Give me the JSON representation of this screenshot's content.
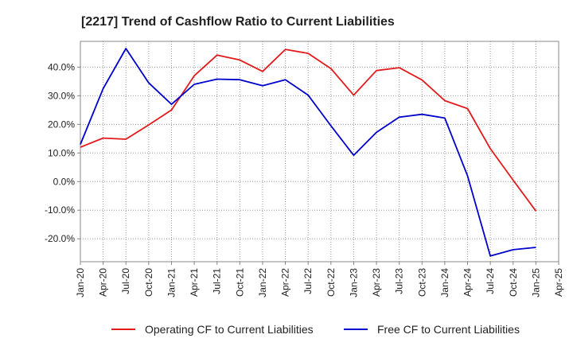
{
  "chart_data": {
    "type": "line",
    "title": "[2217]  Trend of Cashflow Ratio to Current Liabilities",
    "xlabel": "",
    "ylabel": "",
    "x_ticks": [
      "Jan-20",
      "Apr-20",
      "Jul-20",
      "Oct-20",
      "Jan-21",
      "Apr-21",
      "Jul-21",
      "Oct-21",
      "Jan-22",
      "Apr-22",
      "Jul-22",
      "Oct-22",
      "Jan-23",
      "Apr-23",
      "Jul-23",
      "Oct-23",
      "Jan-24",
      "Apr-24",
      "Jul-24",
      "Oct-24",
      "Jan-25",
      "Apr-25"
    ],
    "y_ticks": [
      {
        "value": 40,
        "label": "40.0%"
      },
      {
        "value": 30,
        "label": "30.0%"
      },
      {
        "value": 20,
        "label": "20.0%"
      },
      {
        "value": 10,
        "label": "10.0%"
      },
      {
        "value": 0,
        "label": "0.0%"
      },
      {
        "value": -10,
        "label": "-10.0%"
      },
      {
        "value": -20,
        "label": "-20.0%"
      }
    ],
    "xlim": [
      "Jan-20",
      "Apr-25"
    ],
    "ylim": [
      -28,
      49
    ],
    "grid": true,
    "legend_position": "bottom",
    "series": [
      {
        "name": "Operating CF to Current Liabilities",
        "color": "#e31a1c",
        "points": [
          [
            "Jan-20",
            12.0
          ],
          [
            "Apr-20",
            15.2
          ],
          [
            "Jul-20",
            14.8
          ],
          [
            "Oct-20",
            19.8
          ],
          [
            "Jan-21",
            25.0
          ],
          [
            "Apr-21",
            37.0
          ],
          [
            "Jul-21",
            44.2
          ],
          [
            "Oct-21",
            42.5
          ],
          [
            "Jan-22",
            38.5
          ],
          [
            "Apr-22",
            46.2
          ],
          [
            "Jul-22",
            44.8
          ],
          [
            "Oct-22",
            39.5
          ],
          [
            "Jan-23",
            30.2
          ],
          [
            "Apr-23",
            38.8
          ],
          [
            "Jul-23",
            39.8
          ],
          [
            "Oct-23",
            35.5
          ],
          [
            "Jan-24",
            28.3
          ],
          [
            "Apr-24",
            25.5
          ],
          [
            "Jul-24",
            11.5
          ],
          [
            "Oct-24",
            0.5
          ],
          [
            "Jan-25",
            -10.3
          ]
        ]
      },
      {
        "name": "Free CF to Current Liabilities",
        "color": "#0000cc",
        "points": [
          [
            "Jan-20",
            13.0
          ],
          [
            "Apr-20",
            32.5
          ],
          [
            "Jul-20",
            46.5
          ],
          [
            "Oct-20",
            34.5
          ],
          [
            "Jan-21",
            27.0
          ],
          [
            "Apr-21",
            34.0
          ],
          [
            "Jul-21",
            35.8
          ],
          [
            "Oct-21",
            35.6
          ],
          [
            "Jan-22",
            33.5
          ],
          [
            "Apr-22",
            35.6
          ],
          [
            "Jul-22",
            30.2
          ],
          [
            "Oct-22",
            19.5
          ],
          [
            "Jan-23",
            9.2
          ],
          [
            "Apr-23",
            17.2
          ],
          [
            "Jul-23",
            22.5
          ],
          [
            "Oct-23",
            23.5
          ],
          [
            "Jan-24",
            22.2
          ],
          [
            "Apr-24",
            2.0
          ],
          [
            "Jul-24",
            -26.0
          ],
          [
            "Oct-24",
            -23.8
          ],
          [
            "Jan-25",
            -23.0
          ]
        ]
      }
    ]
  }
}
